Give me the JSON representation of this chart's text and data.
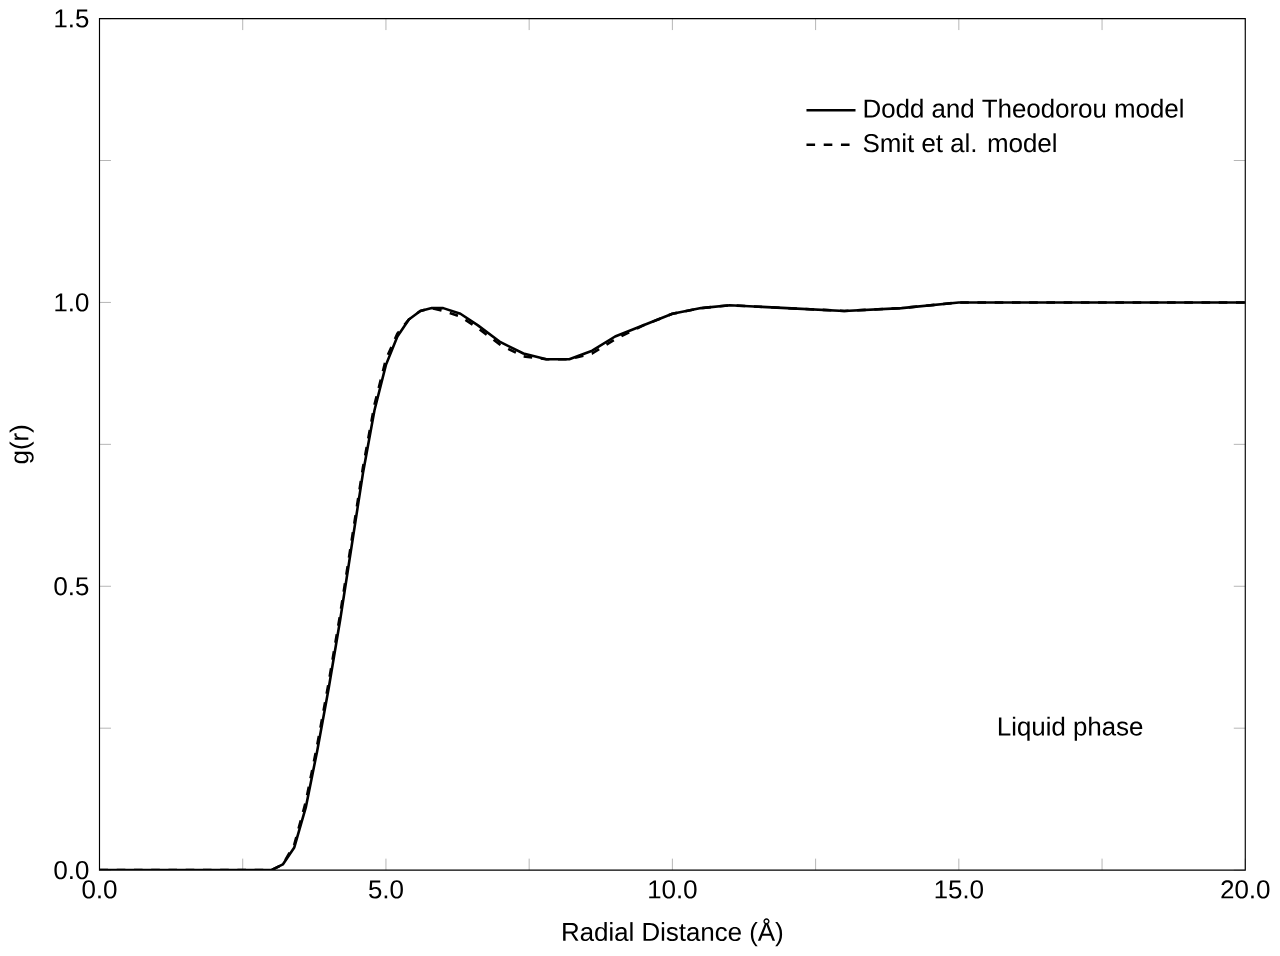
{
  "chart_data": {
    "type": "line",
    "xlabel": "Radial Distance (Å)",
    "ylabel": "g(r)",
    "xlim": [
      0,
      20
    ],
    "ylim": [
      0,
      1.5
    ],
    "xticks": [
      {
        "value": 0,
        "label": "0.0"
      },
      {
        "value": 2.5,
        "label": null
      },
      {
        "value": 5,
        "label": "5.0"
      },
      {
        "value": 7.5,
        "label": null
      },
      {
        "value": 10,
        "label": "10.0"
      },
      {
        "value": 12.5,
        "label": null
      },
      {
        "value": 15,
        "label": "15.0"
      },
      {
        "value": 17.5,
        "label": null
      },
      {
        "value": 20,
        "label": "20.0"
      }
    ],
    "yticks": [
      {
        "value": 0,
        "label": "0.0"
      },
      {
        "value": 0.25,
        "label": null
      },
      {
        "value": 0.5,
        "label": "0.5"
      },
      {
        "value": 0.75,
        "label": null
      },
      {
        "value": 1,
        "label": "1.0"
      },
      {
        "value": 1.25,
        "label": null
      },
      {
        "value": 1.5,
        "label": "1.5"
      }
    ],
    "x": [
      0,
      1,
      2,
      3,
      3.2,
      3.4,
      3.6,
      3.8,
      4.0,
      4.2,
      4.4,
      4.6,
      4.8,
      5.0,
      5.2,
      5.4,
      5.6,
      5.8,
      6.0,
      6.3,
      6.6,
      7.0,
      7.4,
      7.8,
      8.2,
      8.6,
      9.0,
      9.5,
      10.0,
      10.5,
      11,
      12,
      13,
      14,
      15,
      16,
      17,
      18,
      19,
      20
    ],
    "grid": false,
    "legend": "top right",
    "marker": "none",
    "annotations": [
      "Liquid phase"
    ],
    "series": [
      {
        "name": "Dodd and Theodorou model",
        "color": "#000000",
        "line_style": "solid",
        "values": [
          0,
          0,
          0,
          0,
          0.01,
          0.04,
          0.11,
          0.21,
          0.32,
          0.44,
          0.57,
          0.7,
          0.81,
          0.89,
          0.94,
          0.97,
          0.985,
          0.99,
          0.99,
          0.98,
          0.96,
          0.93,
          0.91,
          0.9,
          0.9,
          0.915,
          0.94,
          0.96,
          0.98,
          0.99,
          0.995,
          0.99,
          0.985,
          0.99,
          1.0,
          1.0,
          1.0,
          1.0,
          1.0,
          1.0
        ]
      },
      {
        "name": "Smit et al. model",
        "color": "#000000",
        "line_style": "dashed",
        "values": [
          0,
          0,
          0,
          0,
          0.01,
          0.045,
          0.12,
          0.22,
          0.33,
          0.45,
          0.58,
          0.71,
          0.82,
          0.9,
          0.945,
          0.97,
          0.985,
          0.99,
          0.985,
          0.975,
          0.955,
          0.925,
          0.905,
          0.9,
          0.9,
          0.91,
          0.935,
          0.96,
          0.98,
          0.99,
          0.995,
          0.99,
          0.985,
          0.99,
          1.0,
          1.0,
          1.0,
          1.0,
          1.0,
          1.0
        ]
      }
    ]
  }
}
